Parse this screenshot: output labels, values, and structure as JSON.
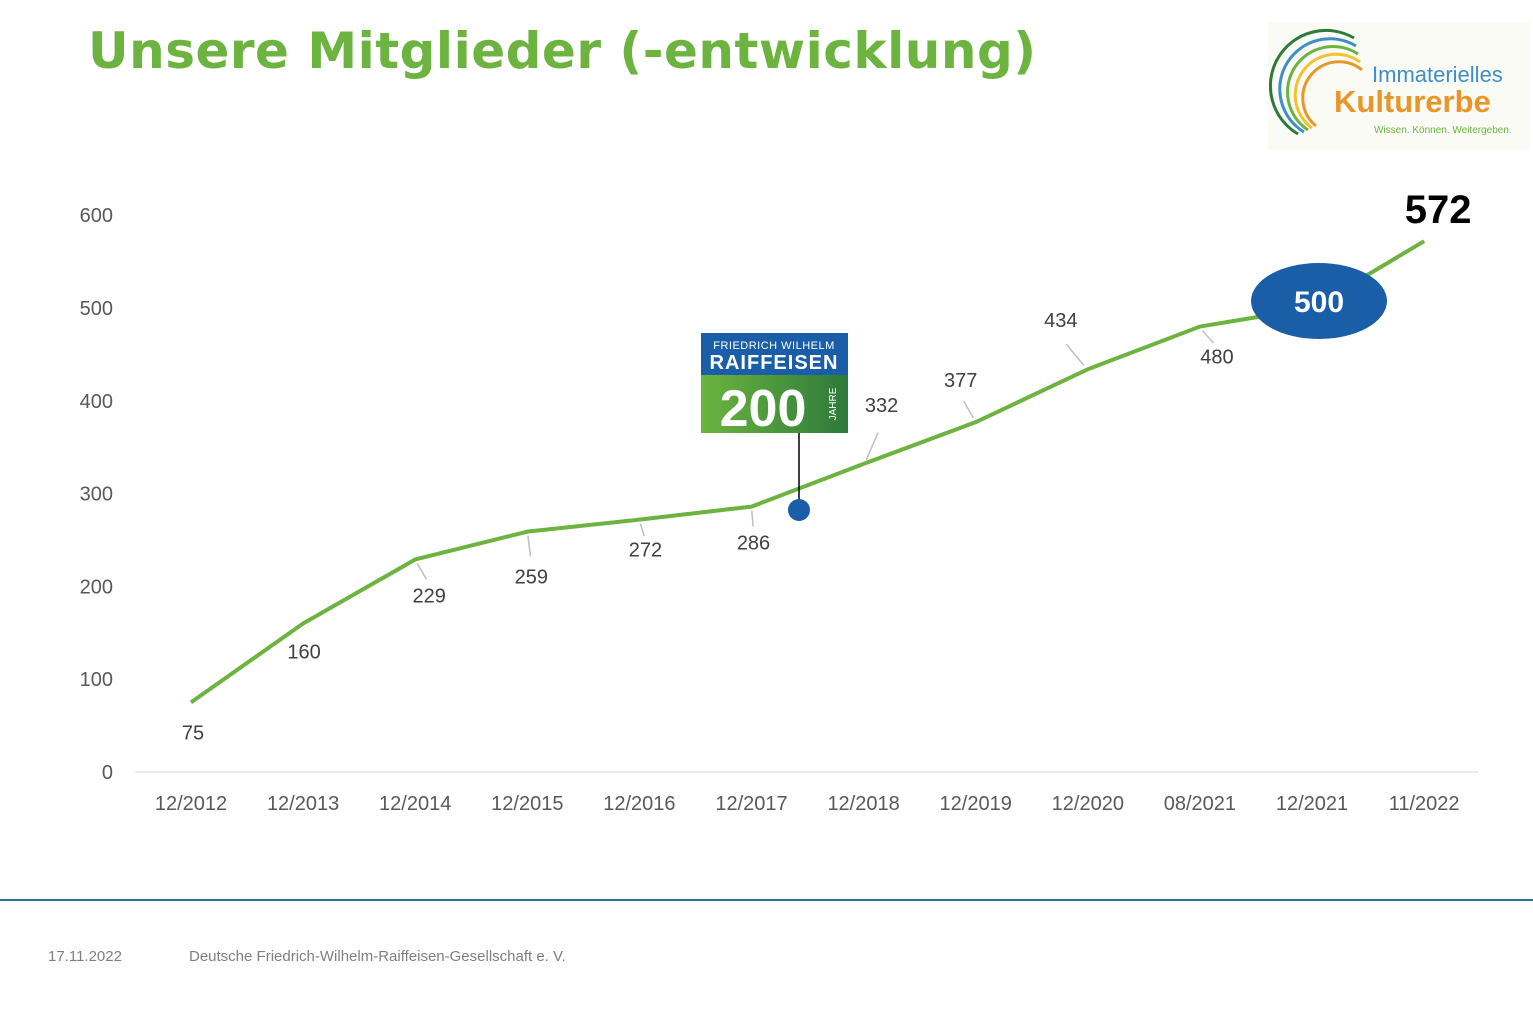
{
  "title": "Unsere Mitglieder (-entwicklung)",
  "footer": {
    "date": "17.11.2022",
    "organization": "Deutsche Friedrich-Wilhelm-Raiffeisen-Gesellschaft e. V."
  },
  "logo": {
    "line1": "Immaterielles",
    "line2": "Kulturerbe",
    "line3": "Wissen. Können. Weitergeben."
  },
  "badge_200": {
    "line1": "FRIEDRICH WILHELM",
    "line2": "RAIFFEISEN",
    "number": "200",
    "side": "JAHRE"
  },
  "callouts": {
    "milestone": "500",
    "latest": "572"
  },
  "colors": {
    "title_green": "#6cb33f",
    "line_green": "#6cb33f",
    "badge_blue": "#1a5ea8",
    "marker_blue": "#1a5ea8",
    "axis_text": "#595959"
  },
  "chart_data": {
    "type": "line",
    "categories": [
      "12/2012",
      "12/2013",
      "12/2014",
      "12/2015",
      "12/2016",
      "12/2017",
      "12/2018",
      "12/2019",
      "12/2020",
      "08/2021",
      "12/2021",
      "11/2022"
    ],
    "series": [
      {
        "values": [
          75,
          160,
          229,
          259,
          272,
          286,
          332,
          377,
          434,
          480,
          500,
          572
        ]
      }
    ],
    "data_labels": [
      "75",
      "160",
      "229",
      "259",
      "272",
      "286",
      "332",
      "377",
      "434",
      "480",
      "",
      "572"
    ],
    "y_ticks": [
      0,
      100,
      200,
      300,
      400,
      500,
      600
    ],
    "ylim": [
      0,
      600
    ],
    "grid": false,
    "legend": "none"
  }
}
